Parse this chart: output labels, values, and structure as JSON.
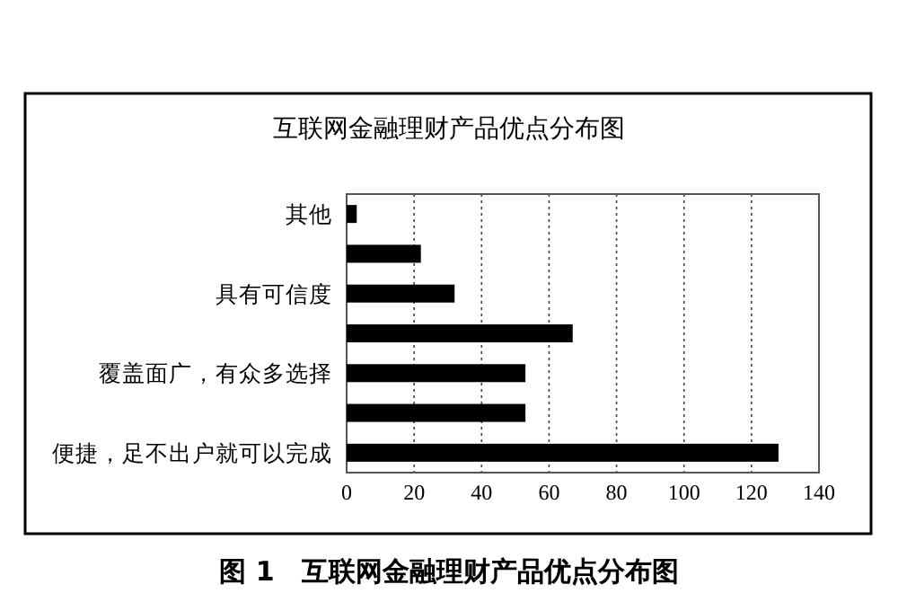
{
  "chart_data": {
    "type": "bar",
    "orientation": "horizontal",
    "title": "互联网金融理财产品优点分布图",
    "categories": [
      "其他",
      null,
      "具有可信度",
      null,
      "覆盖面广，有众多选择",
      null,
      "便捷，足不出户就可以完成"
    ],
    "values": [
      3,
      22,
      32,
      67,
      53,
      53,
      128
    ],
    "color": "#000000",
    "xlim": [
      0,
      140
    ],
    "xticks": [
      0,
      20,
      40,
      60,
      80,
      100,
      120,
      140
    ],
    "grid": "x",
    "annotations": [
      "图 1　互联网金融理财产品优点分布图"
    ]
  }
}
